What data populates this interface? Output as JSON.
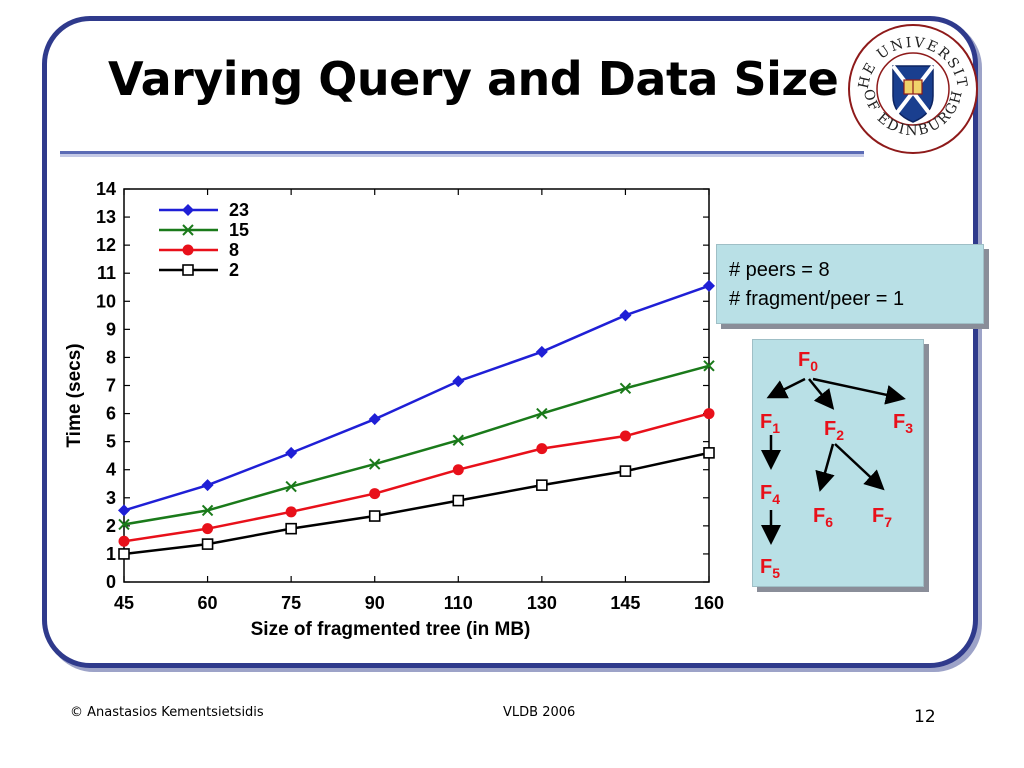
{
  "slide": {
    "title": "Varying Query and Data Size",
    "logo_text_top": "THE UNIVERSITY",
    "logo_text_bottom": "OF EDINBURGH"
  },
  "info": {
    "line1": "# peers = 8",
    "line2": "# fragment/peer = 1"
  },
  "tree": {
    "nodes": [
      {
        "id": "F0",
        "base": "F",
        "sub": "0"
      },
      {
        "id": "F1",
        "base": "F",
        "sub": "1"
      },
      {
        "id": "F2",
        "base": "F",
        "sub": "2"
      },
      {
        "id": "F3",
        "base": "F",
        "sub": "3"
      },
      {
        "id": "F4",
        "base": "F",
        "sub": "4"
      },
      {
        "id": "F5",
        "base": "F",
        "sub": "5"
      },
      {
        "id": "F6",
        "base": "F",
        "sub": "6"
      },
      {
        "id": "F7",
        "base": "F",
        "sub": "7"
      }
    ],
    "edges": [
      [
        "F0",
        "F1"
      ],
      [
        "F0",
        "F2"
      ],
      [
        "F0",
        "F3"
      ],
      [
        "F1",
        "F4"
      ],
      [
        "F4",
        "F5"
      ],
      [
        "F2",
        "F6"
      ],
      [
        "F2",
        "F7"
      ]
    ],
    "node_color": "#e8101a"
  },
  "footer": {
    "left": "©  Anastasios Kementsietsidis",
    "center": "VLDB 2006",
    "page": "12"
  },
  "chart_data": {
    "type": "line",
    "xlabel": "Size of fragmented tree (in MB)",
    "ylabel": "Time (secs)",
    "categories": [
      "45",
      "60",
      "75",
      "90",
      "110",
      "130",
      "145",
      "160"
    ],
    "ylim": [
      0,
      14
    ],
    "yticks": [
      0,
      1,
      2,
      3,
      4,
      5,
      6,
      7,
      8,
      9,
      10,
      11,
      12,
      13,
      14
    ],
    "grid": false,
    "legend_position": "top-left",
    "series": [
      {
        "name": "23",
        "color": "#1f1fd6",
        "marker": "diamond",
        "values": [
          2.55,
          3.45,
          4.6,
          5.8,
          7.15,
          8.2,
          9.5,
          10.55
        ]
      },
      {
        "name": "15",
        "color": "#1a7a1a",
        "marker": "x",
        "values": [
          2.05,
          2.55,
          3.4,
          4.2,
          5.05,
          6.0,
          6.9,
          7.7
        ]
      },
      {
        "name": "8",
        "color": "#e8101a",
        "marker": "circle",
        "values": [
          1.45,
          1.9,
          2.5,
          3.15,
          4.0,
          4.75,
          5.2,
          6.0
        ]
      },
      {
        "name": "2",
        "color": "#000000",
        "marker": "square",
        "values": [
          1.0,
          1.35,
          1.9,
          2.35,
          2.9,
          3.45,
          3.95,
          4.6
        ]
      }
    ]
  }
}
